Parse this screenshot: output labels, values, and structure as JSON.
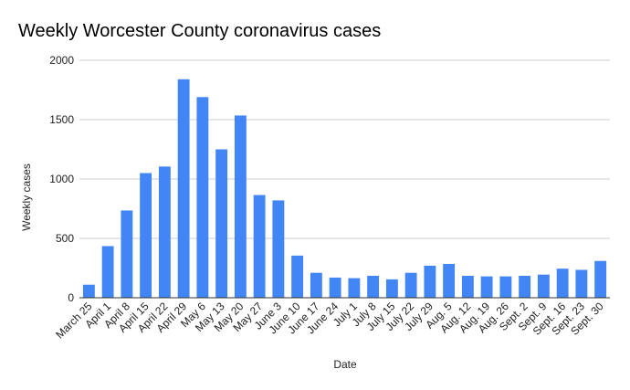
{
  "chart_data": {
    "type": "bar",
    "title": "Weekly Worcester County coronavirus cases",
    "xlabel": "Date",
    "ylabel": "Weekly cases",
    "ylim": [
      0,
      2000
    ],
    "yticks": [
      0,
      500,
      1000,
      1500,
      2000
    ],
    "grid": true,
    "legend": "none",
    "bar_color": "#4285f4",
    "categories": [
      "March 25",
      "April 1",
      "April 8",
      "April 15",
      "April 22",
      "April 29",
      "May 6",
      "May 13",
      "May 20",
      "May 27",
      "June 3",
      "June 10",
      "June 17",
      "June 24",
      "July 1",
      "July 8",
      "July 15",
      "July 22",
      "July 29",
      "Aug. 5",
      "Aug. 12",
      "Aug. 19",
      "Aug. 26",
      "Sept. 2",
      "Sept. 9",
      "Sept. 16",
      "Sept. 23",
      "Sept. 30"
    ],
    "values": [
      110,
      435,
      735,
      1050,
      1105,
      1840,
      1690,
      1250,
      1535,
      865,
      820,
      355,
      210,
      170,
      165,
      185,
      155,
      210,
      270,
      285,
      185,
      180,
      180,
      185,
      195,
      245,
      235,
      310
    ]
  }
}
